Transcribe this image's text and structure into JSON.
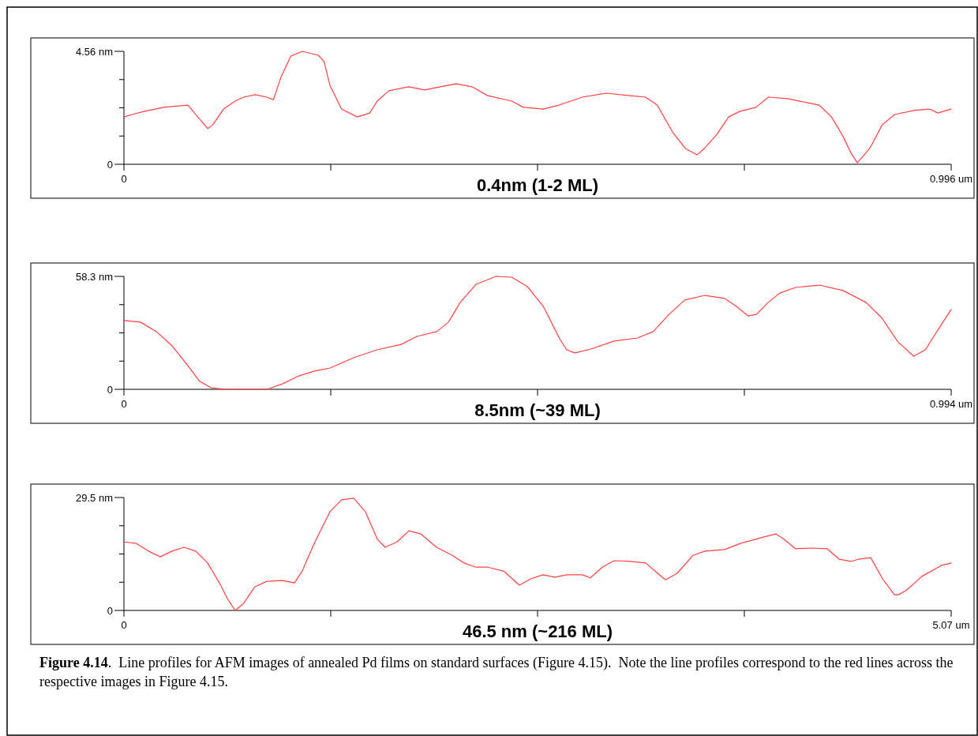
{
  "chart_data": [
    {
      "type": "line",
      "xlabel": "0.4nm (1-2 ML)",
      "color": "#ff4040",
      "line_style": "solid",
      "marker": "none",
      "grid": false,
      "xlim": [
        0,
        0.996
      ],
      "xticks": [
        {
          "value": 0,
          "label": "0"
        },
        {
          "value": 0.249,
          "label": null
        },
        {
          "value": 0.498,
          "label": null
        },
        {
          "value": 0.747,
          "label": null
        },
        {
          "value": 0.996,
          "label": "0.996 um"
        }
      ],
      "ylim": [
        0,
        4.56
      ],
      "yticks": [
        {
          "value": 0,
          "label": "0"
        },
        {
          "value": 1.14,
          "label": null
        },
        {
          "value": 2.28,
          "label": null
        },
        {
          "value": 3.42,
          "label": null
        },
        {
          "value": 4.56,
          "label": "4.56 nm"
        }
      ],
      "x": [
        0,
        0.01,
        0.025,
        0.048,
        0.077,
        0.085,
        0.101,
        0.107,
        0.12,
        0.134,
        0.144,
        0.158,
        0.172,
        0.18,
        0.189,
        0.201,
        0.215,
        0.234,
        0.241,
        0.248,
        0.262,
        0.281,
        0.296,
        0.305,
        0.319,
        0.343,
        0.362,
        0.381,
        0.4,
        0.419,
        0.438,
        0.467,
        0.481,
        0.505,
        0.524,
        0.552,
        0.581,
        0.609,
        0.628,
        0.642,
        0.661,
        0.676,
        0.69,
        0.699,
        0.714,
        0.728,
        0.742,
        0.761,
        0.776,
        0.799,
        0.837,
        0.852,
        0.866,
        0.875,
        0.883,
        0.89,
        0.899,
        0.913,
        0.928,
        0.951,
        0.97,
        0.98,
        0.996
      ],
      "values": [
        1.91,
        2.01,
        2.14,
        2.3,
        2.39,
        2.07,
        1.44,
        1.59,
        2.23,
        2.55,
        2.71,
        2.81,
        2.71,
        2.61,
        3.51,
        4.37,
        4.56,
        4.4,
        4.15,
        3.19,
        2.23,
        1.91,
        2.07,
        2.55,
        2.97,
        3.13,
        3.0,
        3.13,
        3.25,
        3.13,
        2.77,
        2.55,
        2.3,
        2.23,
        2.39,
        2.71,
        2.87,
        2.77,
        2.71,
        2.39,
        1.28,
        0.64,
        0.38,
        0.64,
        1.21,
        1.91,
        2.14,
        2.3,
        2.71,
        2.65,
        2.39,
        1.91,
        1.12,
        0.48,
        0.06,
        0.32,
        0.7,
        1.59,
        2.01,
        2.17,
        2.23,
        2.07,
        2.23
      ]
    },
    {
      "type": "line",
      "xlabel": "8.5nm (~39 ML)",
      "color": "#ff4040",
      "line_style": "solid",
      "marker": "none",
      "grid": false,
      "xlim": [
        0,
        0.994
      ],
      "xticks": [
        {
          "value": 0,
          "label": "0"
        },
        {
          "value": 0.2485,
          "label": null
        },
        {
          "value": 0.497,
          "label": null
        },
        {
          "value": 0.7455,
          "label": null
        },
        {
          "value": 0.994,
          "label": "0.994 um"
        }
      ],
      "ylim": [
        0,
        58.3
      ],
      "yticks": [
        {
          "value": 0,
          "label": "0"
        },
        {
          "value": 14.575,
          "label": null
        },
        {
          "value": 29.15,
          "label": null
        },
        {
          "value": 43.725,
          "label": null
        },
        {
          "value": 58.3,
          "label": "58.3 nm"
        }
      ],
      "x": [
        0,
        0.02,
        0.039,
        0.058,
        0.077,
        0.091,
        0.105,
        0.124,
        0.172,
        0.191,
        0.21,
        0.229,
        0.248,
        0.276,
        0.304,
        0.333,
        0.352,
        0.376,
        0.39,
        0.404,
        0.423,
        0.447,
        0.466,
        0.485,
        0.504,
        0.523,
        0.532,
        0.542,
        0.561,
        0.589,
        0.617,
        0.636,
        0.655,
        0.674,
        0.698,
        0.722,
        0.736,
        0.75,
        0.76,
        0.774,
        0.788,
        0.807,
        0.836,
        0.864,
        0.892,
        0.911,
        0.93,
        0.949,
        0.963,
        0.978,
        0.994
      ],
      "values": [
        35.5,
        34.7,
        29.8,
        22.4,
        12.2,
        4.1,
        0.8,
        0,
        0,
        2.9,
        6.9,
        9.4,
        11.0,
        16.3,
        20.4,
        23.2,
        27.3,
        29.8,
        34.7,
        44.8,
        54.2,
        58.3,
        57.9,
        53.0,
        42.8,
        26.5,
        20.4,
        18.8,
        20.8,
        24.9,
        26.5,
        29.8,
        38.7,
        46.1,
        48.5,
        46.9,
        42.8,
        37.9,
        38.7,
        44.8,
        49.7,
        52.6,
        53.8,
        51.0,
        44.8,
        36.7,
        24.5,
        17.1,
        20.4,
        30.6,
        41.2
      ]
    },
    {
      "type": "line",
      "xlabel": "46.5 nm (~216 ML)",
      "color": "#ff4040",
      "line_style": "solid",
      "marker": "none",
      "grid": false,
      "xlim": [
        0,
        5.07
      ],
      "xticks": [
        {
          "value": 0,
          "label": "0"
        },
        {
          "value": 1.2675,
          "label": null
        },
        {
          "value": 2.535,
          "label": null
        },
        {
          "value": 3.8025,
          "label": null
        },
        {
          "value": 5.07,
          "label": "5.07 um"
        }
      ],
      "ylim": [
        0,
        29.5
      ],
      "yticks": [
        {
          "value": 0,
          "label": "0"
        },
        {
          "value": 7.375,
          "label": null
        },
        {
          "value": 14.75,
          "label": null
        },
        {
          "value": 22.125,
          "label": null
        },
        {
          "value": 29.5,
          "label": "29.5 nm"
        }
      ],
      "annotations": [
        "Figure 4.14",
        ".  Line profiles for AFM images of annealed Pd films on standard surfaces (Figure 4.15).  Note the line profiles correspond to the red lines across the respective images in Figure 4.15."
      ],
      "x": [
        0,
        0.077,
        0.15,
        0.223,
        0.295,
        0.368,
        0.44,
        0.513,
        0.585,
        0.634,
        0.682,
        0.731,
        0.803,
        0.876,
        0.972,
        1.045,
        1.093,
        1.166,
        1.263,
        1.335,
        1.408,
        1.48,
        1.553,
        1.601,
        1.674,
        1.747,
        1.819,
        1.916,
        2.013,
        2.085,
        2.158,
        2.23,
        2.327,
        2.424,
        2.496,
        2.569,
        2.642,
        2.714,
        2.811,
        2.859,
        2.932,
        3.004,
        3.101,
        3.198,
        3.271,
        3.319,
        3.391,
        3.488,
        3.561,
        3.682,
        3.778,
        3.924,
        3.996,
        4.045,
        4.117,
        4.214,
        4.311,
        4.383,
        4.456,
        4.504,
        4.577,
        4.649,
        4.722,
        4.746,
        4.794,
        4.891,
        5.012,
        5.07
      ],
      "values": [
        17.9,
        17.5,
        15.5,
        14.0,
        15.5,
        16.5,
        15.5,
        12.4,
        7.2,
        3.1,
        0,
        1.7,
        6.2,
        7.6,
        7.8,
        7.2,
        10.3,
        17.5,
        25.8,
        28.9,
        29.3,
        25.8,
        18.6,
        16.5,
        17.9,
        20.8,
        20.0,
        16.5,
        14.4,
        12.4,
        11.3,
        11.3,
        10.3,
        6.6,
        8.3,
        9.3,
        8.7,
        9.3,
        9.3,
        8.5,
        11.3,
        13.0,
        12.8,
        12.4,
        9.7,
        8.0,
        9.7,
        14.4,
        15.5,
        15.9,
        17.5,
        19.2,
        20.0,
        18.6,
        16.1,
        16.3,
        16.1,
        13.4,
        12.8,
        13.4,
        13.8,
        8.3,
        4.1,
        4.1,
        5.2,
        8.9,
        11.8,
        12.4
      ]
    }
  ]
}
